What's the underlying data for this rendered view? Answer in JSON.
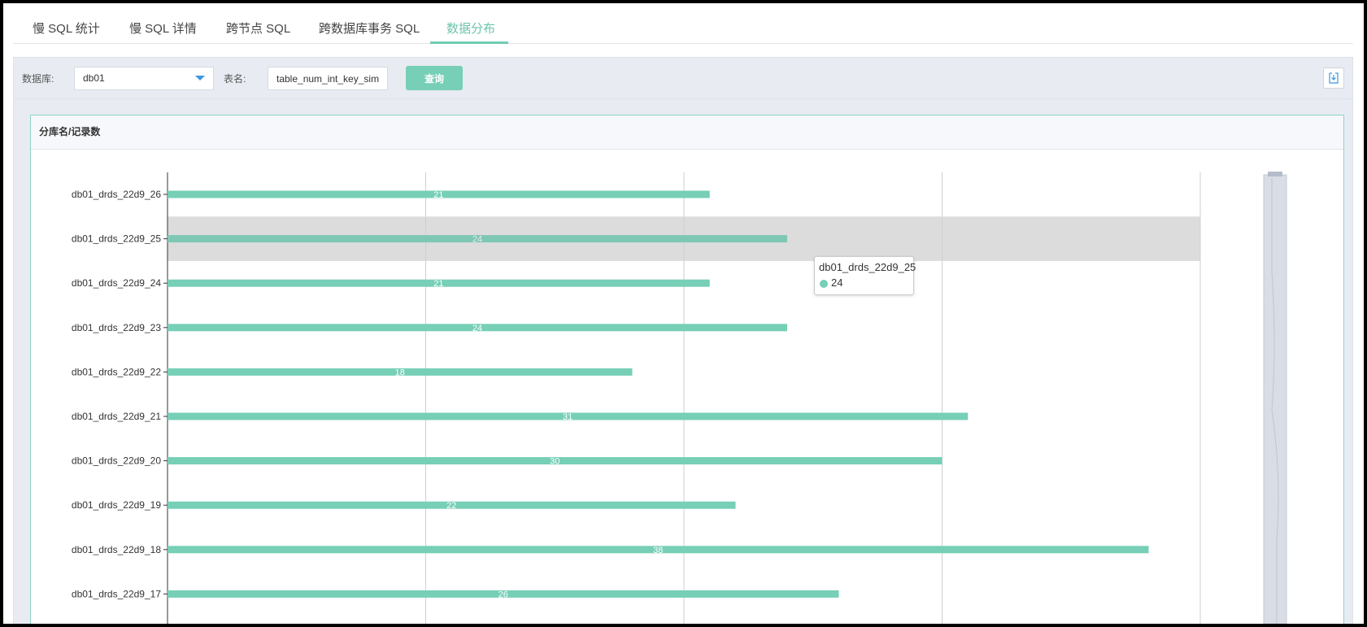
{
  "tabs": [
    {
      "label": "慢 SQL 统计"
    },
    {
      "label": "慢 SQL 详情"
    },
    {
      "label": "跨节点 SQL"
    },
    {
      "label": "跨数据库事务 SQL"
    },
    {
      "label": "数据分布"
    }
  ],
  "toolbar": {
    "db_label": "数据库:",
    "db_value": "db01",
    "table_label": "表名:",
    "table_value": "table_num_int_key_sim",
    "query_label": "查询",
    "export_icon": "download-icon"
  },
  "panel": {
    "title": "分库名/记录数"
  },
  "tooltip": {
    "title": "db01_drds_22d9_25",
    "value": "24"
  },
  "colors": {
    "bar": "#76cfb6",
    "accent": "#6cc4ad",
    "highlight": "#dcdcdc"
  },
  "chart_data": {
    "type": "bar",
    "orientation": "horizontal",
    "categories": [
      "db01_drds_22d9_26",
      "db01_drds_22d9_25",
      "db01_drds_22d9_24",
      "db01_drds_22d9_23",
      "db01_drds_22d9_22",
      "db01_drds_22d9_21",
      "db01_drds_22d9_20",
      "db01_drds_22d9_19",
      "db01_drds_22d9_18",
      "db01_drds_22d9_17"
    ],
    "values": [
      21,
      24,
      21,
      24,
      18,
      31,
      30,
      22,
      38,
      26
    ],
    "xlim": [
      0,
      40
    ],
    "grid": true,
    "highlighted": "db01_drds_22d9_25",
    "data_labels": true,
    "datazoom_slider": "right"
  }
}
